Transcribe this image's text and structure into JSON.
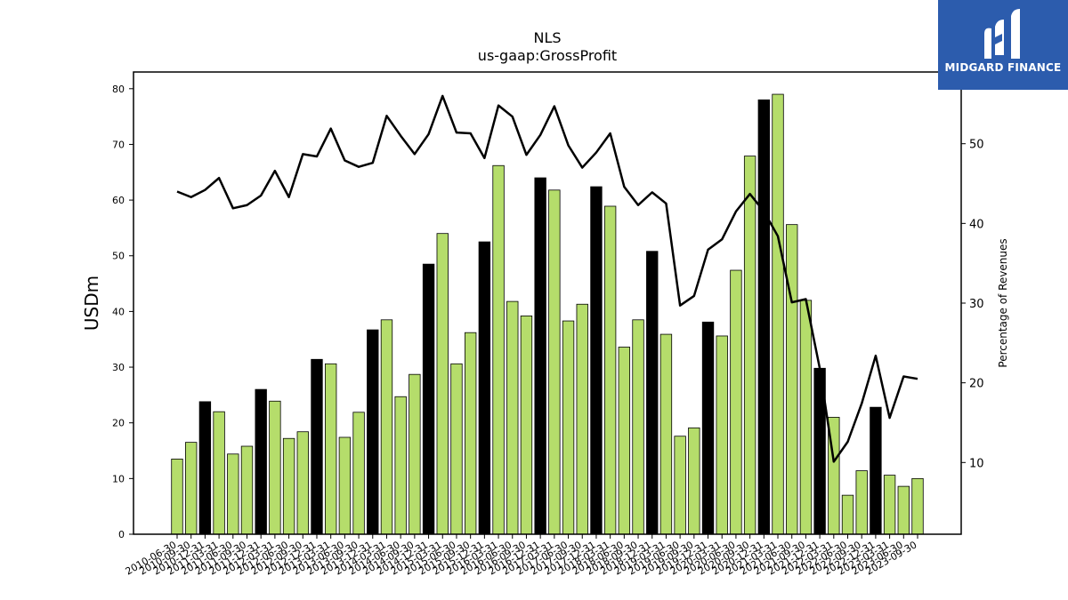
{
  "title": "NLS",
  "subtitle": "us-gaap:GrossProfit",
  "brand": {
    "name": "MIDGARD FINANCE",
    "icon": "midgard-m-logo-icon",
    "background": "#2c5cad"
  },
  "colors": {
    "bar_default": "#b5dd6b",
    "bar_highlight": "#000000",
    "line": "#000000"
  },
  "chart_data": {
    "type": "bar",
    "categories": [
      "2010-06-30",
      "2010-09-30",
      "2010-12-31",
      "2011-03-31",
      "2011-06-30",
      "2011-09-30",
      "2011-12-31",
      "2012-03-31",
      "2012-06-30",
      "2012-09-30",
      "2012-12-31",
      "2013-03-31",
      "2013-06-30",
      "2013-09-30",
      "2013-12-31",
      "2014-03-31",
      "2014-06-30",
      "2014-09-30",
      "2014-12-31",
      "2015-03-31",
      "2015-06-30",
      "2015-09-30",
      "2015-12-31",
      "2016-03-31",
      "2016-06-30",
      "2016-09-30",
      "2016-12-31",
      "2017-03-31",
      "2017-06-30",
      "2017-09-30",
      "2017-12-31",
      "2018-03-31",
      "2018-06-30",
      "2018-09-30",
      "2018-12-31",
      "2019-03-31",
      "2019-06-30",
      "2019-09-30",
      "2019-12-31",
      "2020-03-31",
      "2020-06-30",
      "2020-09-30",
      "2020-12-31",
      "2021-03-31",
      "2021-06-30",
      "2021-09-30",
      "2021-12-31",
      "2022-03-31",
      "2022-06-30",
      "2022-09-30",
      "2022-12-31",
      "2023-03-31",
      "2023-06-30",
      "2023-09-30"
    ],
    "series": [
      {
        "type": "bar",
        "axis": "left",
        "values": [
          13.5,
          16.5,
          23.8,
          22.0,
          14.4,
          15.8,
          26.0,
          23.9,
          17.2,
          18.4,
          31.4,
          30.6,
          17.4,
          21.9,
          36.7,
          38.5,
          24.7,
          28.7,
          48.5,
          54.0,
          30.6,
          36.2,
          52.5,
          66.2,
          41.8,
          39.2,
          64.0,
          61.8,
          38.3,
          41.3,
          62.4,
          58.9,
          33.6,
          38.5,
          50.8,
          35.9,
          17.6,
          19.1,
          38.1,
          35.6,
          47.4,
          67.9,
          78.0,
          79.0,
          55.6,
          42.0,
          29.8,
          21.0,
          7.0,
          11.4,
          22.8,
          10.6,
          8.6,
          10.0
        ],
        "highlight": [
          false,
          false,
          true,
          false,
          false,
          false,
          true,
          false,
          false,
          false,
          true,
          false,
          false,
          false,
          true,
          false,
          false,
          false,
          true,
          false,
          false,
          false,
          true,
          false,
          false,
          false,
          true,
          false,
          false,
          false,
          true,
          false,
          false,
          false,
          true,
          false,
          false,
          false,
          true,
          false,
          false,
          false,
          true,
          false,
          false,
          false,
          true,
          false,
          false,
          false,
          true,
          false,
          false,
          false
        ]
      },
      {
        "type": "line",
        "axis": "right",
        "values": [
          44.0,
          43.3,
          44.2,
          45.7,
          41.9,
          42.3,
          43.5,
          46.6,
          43.3,
          48.7,
          48.4,
          51.9,
          47.9,
          47.1,
          47.6,
          53.5,
          51.0,
          48.7,
          51.2,
          56.0,
          51.4,
          51.3,
          48.2,
          54.8,
          53.4,
          48.6,
          51.1,
          54.7,
          49.8,
          47.0,
          48.9,
          51.3,
          44.6,
          42.3,
          43.9,
          42.5,
          29.7,
          30.9,
          36.7,
          38.0,
          41.5,
          43.7,
          41.5,
          38.4,
          30.1,
          30.5,
          21.8,
          10.1,
          12.6,
          17.4,
          23.4,
          15.6,
          20.8,
          20.5
        ]
      }
    ],
    "ylabel": "USDm",
    "y2label": "Percentage of Revenues",
    "ylim": [
      0,
      83
    ],
    "y2lim": [
      1,
      59
    ],
    "yticks": [
      0,
      10,
      20,
      30,
      40,
      50,
      60,
      70,
      80
    ],
    "y2ticks": [
      10,
      20,
      30,
      40,
      50
    ],
    "grid": false,
    "legend": "none"
  }
}
